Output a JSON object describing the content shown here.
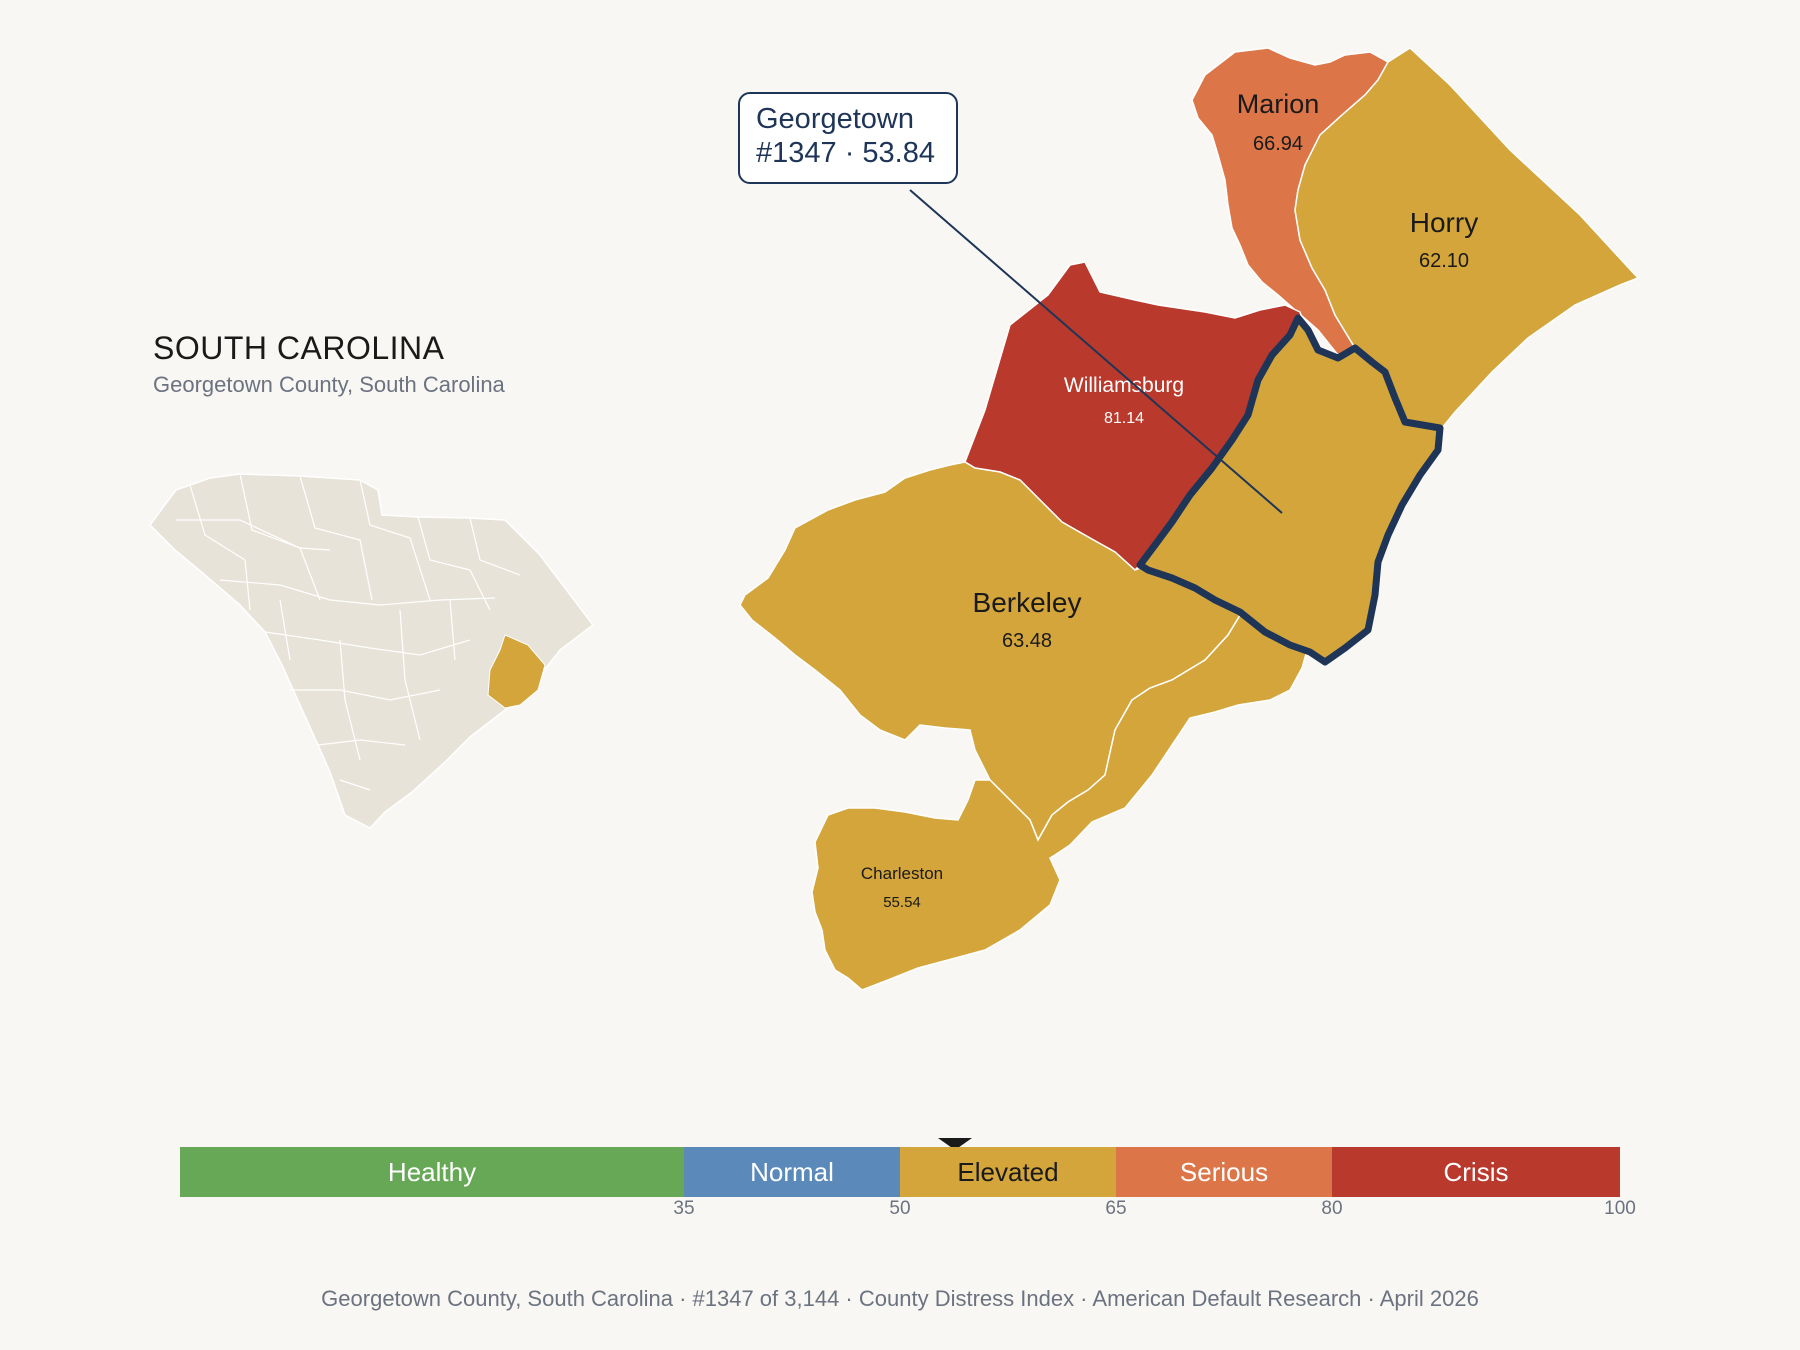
{
  "header": {
    "state_title": "SOUTH CAROLINA",
    "subtitle": "Georgetown County, South Carolina"
  },
  "callout": {
    "county": "Georgetown",
    "rank_score": "#1347 · 53.84"
  },
  "counties": [
    {
      "name": "Marion",
      "score": "66.94",
      "category": "Serious",
      "color": "#dc7649"
    },
    {
      "name": "Horry",
      "score": "62.10",
      "category": "Elevated",
      "color": "#d3a53b"
    },
    {
      "name": "Williamsburg",
      "score": "81.14",
      "category": "Crisis",
      "color": "#b93a2c"
    },
    {
      "name": "Berkeley",
      "score": "63.48",
      "category": "Elevated",
      "color": "#d3a53b"
    },
    {
      "name": "Charleston",
      "score": "55.54",
      "category": "Elevated",
      "color": "#d3a53b"
    },
    {
      "name": "Georgetown",
      "score": "53.84",
      "category": "Elevated",
      "color": "#d3a53b",
      "highlighted": true
    }
  ],
  "scale": {
    "segments": [
      {
        "label": "Healthy",
        "from": 0,
        "to": 35,
        "color": "#67a857"
      },
      {
        "label": "Normal",
        "from": 35,
        "to": 50,
        "color": "#5b8aba"
      },
      {
        "label": "Elevated",
        "from": 50,
        "to": 65,
        "color": "#d3a53b"
      },
      {
        "label": "Serious",
        "from": 65,
        "to": 80,
        "color": "#dc7649"
      },
      {
        "label": "Crisis",
        "from": 80,
        "to": 100,
        "color": "#b93a2c"
      }
    ],
    "ticks": [
      "35",
      "50",
      "65",
      "80",
      "100"
    ],
    "marker_value": 53.84
  },
  "footer": {
    "text": "Georgetown County, South Carolina  ·  #1347 of 3,144  ·  County Distress Index  ·  American Default Research  ·  April 2026"
  }
}
